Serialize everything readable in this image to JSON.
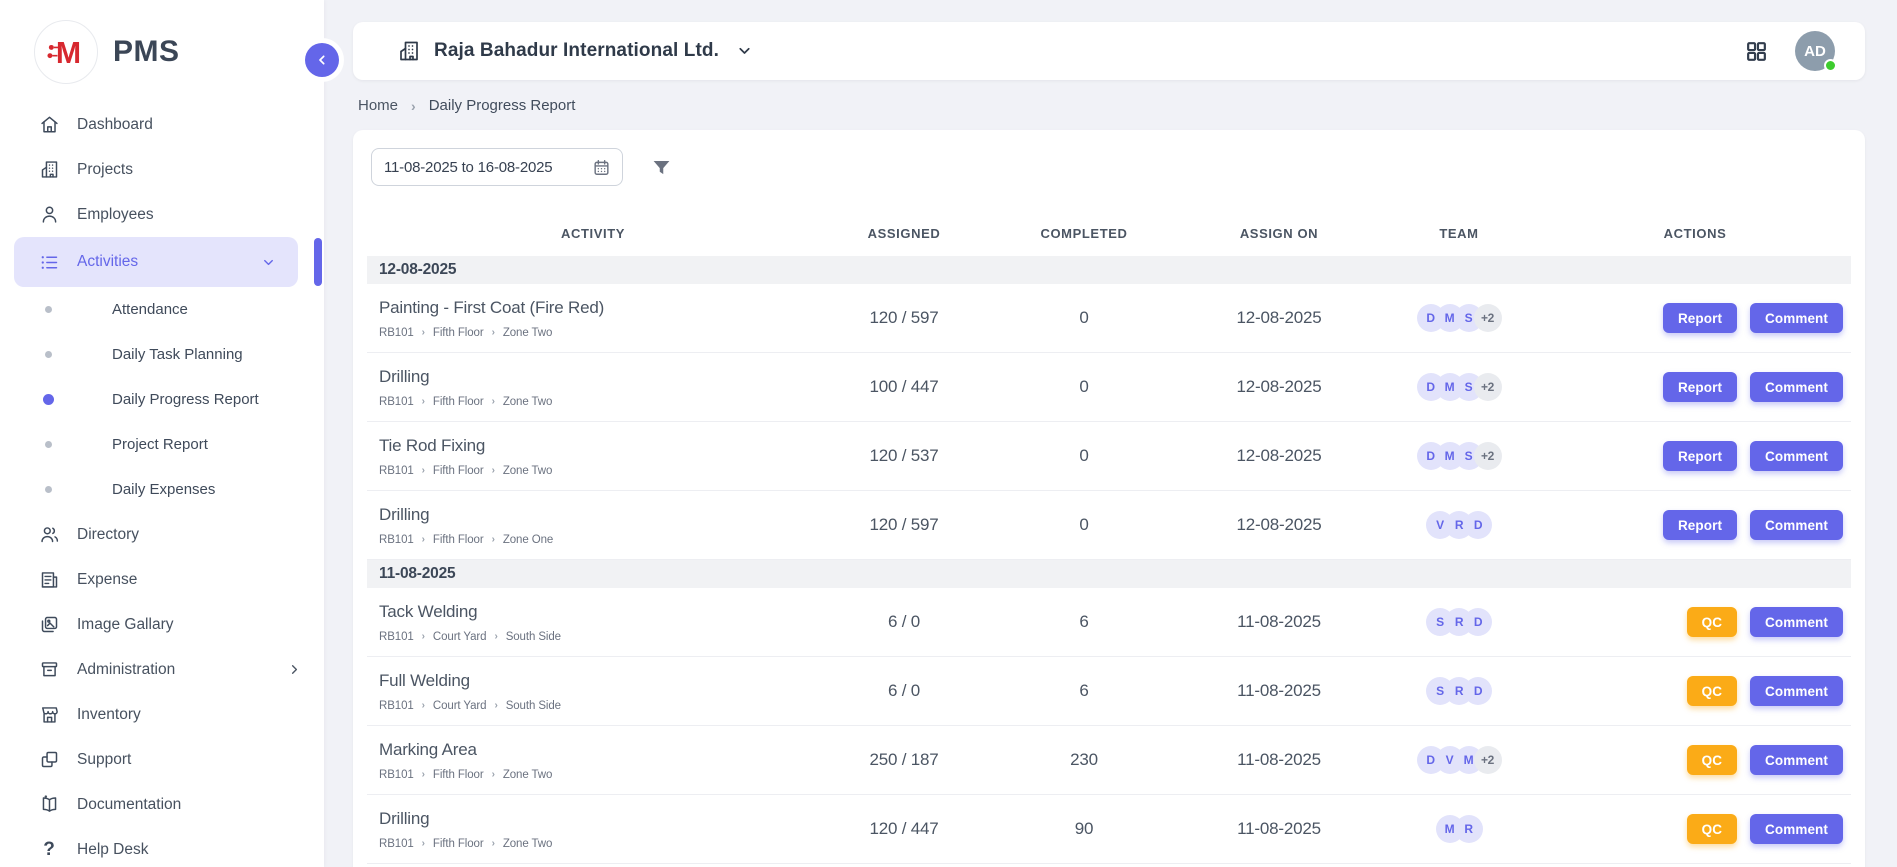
{
  "brand": {
    "name": "PMS",
    "logo_letter": "M",
    "logo_red": "#d7282f"
  },
  "colors": {
    "accent": "#6466e9",
    "qc_orange": "#fbab17",
    "avatar_bg": "#8d9dac",
    "online_green": "#3ecc2e",
    "active_bg": "#e4e4fc"
  },
  "sidebar": {
    "items": [
      {
        "id": "dashboard",
        "label": "Dashboard",
        "icon": "home-icon"
      },
      {
        "id": "projects",
        "label": "Projects",
        "icon": "building-icon"
      },
      {
        "id": "employees",
        "label": "Employees",
        "icon": "person-icon"
      },
      {
        "id": "activities",
        "label": "Activities",
        "icon": "list-icon",
        "active": true,
        "chevron": "down",
        "children": [
          {
            "id": "attendance",
            "label": "Attendance"
          },
          {
            "id": "daily-task-planning",
            "label": "Daily Task Planning"
          },
          {
            "id": "daily-progress-report",
            "label": "Daily Progress Report",
            "active": true
          },
          {
            "id": "project-report",
            "label": "Project Report"
          },
          {
            "id": "daily-expenses",
            "label": "Daily Expenses"
          }
        ]
      },
      {
        "id": "directory",
        "label": "Directory",
        "icon": "people-icon"
      },
      {
        "id": "expense",
        "label": "Expense",
        "icon": "receipt-icon"
      },
      {
        "id": "image-gallary",
        "label": "Image Gallary",
        "icon": "image-icon"
      },
      {
        "id": "administration",
        "label": "Administration",
        "icon": "archive-icon",
        "chevron": "right"
      },
      {
        "id": "inventory",
        "label": "Inventory",
        "icon": "store-icon"
      },
      {
        "id": "support",
        "label": "Support",
        "icon": "copy-icon"
      },
      {
        "id": "documentation",
        "label": "Documentation",
        "icon": "book-icon"
      },
      {
        "id": "help-desk",
        "label": "Help Desk",
        "icon": "question-icon"
      }
    ]
  },
  "header": {
    "company": "Raja Bahadur International Ltd.",
    "avatar_initials": "AD"
  },
  "breadcrumb": {
    "items": [
      "Home",
      "Daily Progress Report"
    ]
  },
  "separators": {
    "breadcrumb": "›",
    "path": "›"
  },
  "filters": {
    "date_range": "11-08-2025 to 16-08-2025"
  },
  "table": {
    "columns": [
      "ACTIVITY",
      "ASSIGNED",
      "COMPLETED",
      "ASSIGN ON",
      "TEAM",
      "ACTIONS"
    ],
    "groups": [
      {
        "date": "12-08-2025",
        "rows": [
          {
            "activity": "Painting - First Coat (Fire Red)",
            "path": [
              "RB101",
              "Fifth Floor",
              "Zone Two"
            ],
            "assigned": "120 / 597",
            "completed": "0",
            "assign_on": "12-08-2025",
            "team": [
              "D",
              "M",
              "S"
            ],
            "team_extra": "+2",
            "actions": [
              {
                "label": "Report",
                "style": "indigo"
              },
              {
                "label": "Comment",
                "style": "indigo"
              }
            ]
          },
          {
            "activity": "Drilling",
            "path": [
              "RB101",
              "Fifth Floor",
              "Zone Two"
            ],
            "assigned": "100 / 447",
            "completed": "0",
            "assign_on": "12-08-2025",
            "team": [
              "D",
              "M",
              "S"
            ],
            "team_extra": "+2",
            "actions": [
              {
                "label": "Report",
                "style": "indigo"
              },
              {
                "label": "Comment",
                "style": "indigo"
              }
            ]
          },
          {
            "activity": "Tie Rod Fixing",
            "path": [
              "RB101",
              "Fifth Floor",
              "Zone Two"
            ],
            "assigned": "120 / 537",
            "completed": "0",
            "assign_on": "12-08-2025",
            "team": [
              "D",
              "M",
              "S"
            ],
            "team_extra": "+2",
            "actions": [
              {
                "label": "Report",
                "style": "indigo"
              },
              {
                "label": "Comment",
                "style": "indigo"
              }
            ]
          },
          {
            "activity": "Drilling",
            "path": [
              "RB101",
              "Fifth Floor",
              "Zone One"
            ],
            "assigned": "120 / 597",
            "completed": "0",
            "assign_on": "12-08-2025",
            "team": [
              "V",
              "R",
              "D"
            ],
            "team_extra": null,
            "actions": [
              {
                "label": "Report",
                "style": "indigo"
              },
              {
                "label": "Comment",
                "style": "indigo"
              }
            ]
          }
        ]
      },
      {
        "date": "11-08-2025",
        "rows": [
          {
            "activity": "Tack Welding",
            "path": [
              "RB101",
              "Court Yard",
              "South Side"
            ],
            "assigned": "6 / 0",
            "completed": "6",
            "assign_on": "11-08-2025",
            "team": [
              "S",
              "R",
              "D"
            ],
            "team_extra": null,
            "actions": [
              {
                "label": "QC",
                "style": "orange"
              },
              {
                "label": "Comment",
                "style": "indigo"
              }
            ]
          },
          {
            "activity": "Full Welding",
            "path": [
              "RB101",
              "Court Yard",
              "South Side"
            ],
            "assigned": "6 / 0",
            "completed": "6",
            "assign_on": "11-08-2025",
            "team": [
              "S",
              "R",
              "D"
            ],
            "team_extra": null,
            "actions": [
              {
                "label": "QC",
                "style": "orange"
              },
              {
                "label": "Comment",
                "style": "indigo"
              }
            ]
          },
          {
            "activity": "Marking Area",
            "path": [
              "RB101",
              "Fifth Floor",
              "Zone Two"
            ],
            "assigned": "250 / 187",
            "completed": "230",
            "assign_on": "11-08-2025",
            "team": [
              "D",
              "V",
              "M"
            ],
            "team_extra": "+2",
            "actions": [
              {
                "label": "QC",
                "style": "orange"
              },
              {
                "label": "Comment",
                "style": "indigo"
              }
            ]
          },
          {
            "activity": "Drilling",
            "path": [
              "RB101",
              "Fifth Floor",
              "Zone Two"
            ],
            "assigned": "120 / 447",
            "completed": "90",
            "assign_on": "11-08-2025",
            "team": [
              "M",
              "R"
            ],
            "team_extra": null,
            "actions": [
              {
                "label": "QC",
                "style": "orange"
              },
              {
                "label": "Comment",
                "style": "indigo"
              }
            ]
          }
        ]
      }
    ]
  }
}
